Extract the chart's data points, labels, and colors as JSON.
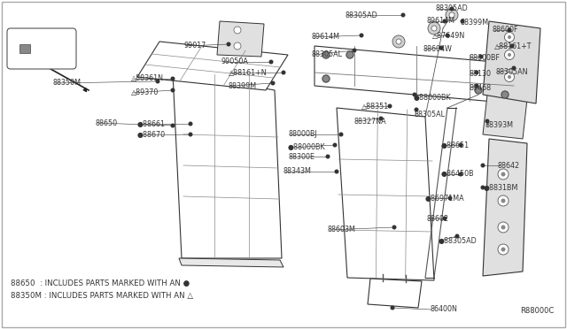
{
  "bg_color": "#ffffff",
  "border_color": "#888888",
  "diagram_ref": "R88000C",
  "legend_lines": [
    "88650  : INCLUDES PARTS MARKED WITH AN ●",
    "88350M : INCLUDES PARTS MARKED WITH AN △"
  ],
  "line_color": "#333333",
  "text_color": "#333333",
  "font_size_label": 5.8,
  "font_size_legend": 6.2,
  "font_size_ref": 6.0
}
